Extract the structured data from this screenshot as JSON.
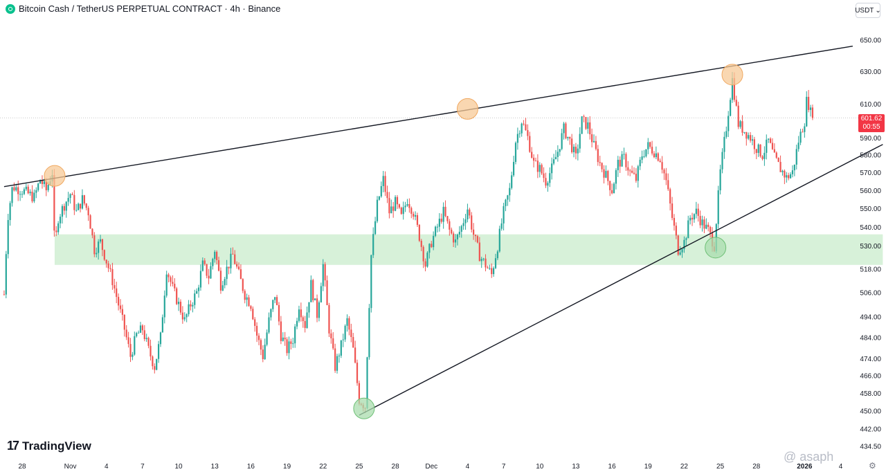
{
  "header": {
    "title": "Bitcoin Cash / TetherUS PERPETUAL CONTRACT · 4h · Binance",
    "coin_icon": "bitcoin-cash-icon"
  },
  "currency_select": {
    "value": "USDT",
    "icon": "chevron-down-icon"
  },
  "price_tag": {
    "price": "601.62",
    "countdown": "00:55",
    "color": "#f23645"
  },
  "brand": {
    "logo_text": "TradingView",
    "mark": "17"
  },
  "watermark": {
    "text": "@ asaph"
  },
  "colors": {
    "up": "#26a69a",
    "down": "#ef5350",
    "zone": "#d3efd5",
    "resistance_marker": "#f7c997",
    "support_marker": "#a9dcae"
  },
  "chart_data": {
    "type": "candlestick",
    "title": "Bitcoin Cash / TetherUS PERPETUAL CONTRACT · 4h · Binance",
    "y_axis": {
      "scale": "log",
      "range": [
        432,
        662
      ],
      "ticks": [
        "650.00",
        "630.00",
        "610.00",
        "590.00",
        "580.00",
        "570.00",
        "560.00",
        "550.00",
        "540.00",
        "530.00",
        "518.00",
        "506.00",
        "494.00",
        "484.00",
        "474.00",
        "466.00",
        "458.00",
        "450.00",
        "442.00",
        "434.50"
      ]
    },
    "x_axis": {
      "ticks": [
        {
          "label": "28",
          "day": 0
        },
        {
          "label": "Nov",
          "day": 4
        },
        {
          "label": "4",
          "day": 7
        },
        {
          "label": "7",
          "day": 10
        },
        {
          "label": "10",
          "day": 13
        },
        {
          "label": "13",
          "day": 16
        },
        {
          "label": "16",
          "day": 19
        },
        {
          "label": "19",
          "day": 22
        },
        {
          "label": "22",
          "day": 25
        },
        {
          "label": "25",
          "day": 28
        },
        {
          "label": "28",
          "day": 31
        },
        {
          "label": "Dec",
          "day": 34
        },
        {
          "label": "4",
          "day": 37
        },
        {
          "label": "7",
          "day": 40
        },
        {
          "label": "10",
          "day": 43
        },
        {
          "label": "13",
          "day": 46
        },
        {
          "label": "16",
          "day": 49
        },
        {
          "label": "19",
          "day": 52
        },
        {
          "label": "22",
          "day": 55
        },
        {
          "label": "25",
          "day": 58
        },
        {
          "label": "28",
          "day": 61
        },
        {
          "label": "2026",
          "day": 65
        },
        {
          "label": "4",
          "day": 68
        }
      ]
    },
    "last_price": 601.62,
    "price_path": [
      [
        -1.5,
        505
      ],
      [
        -1.2,
        545
      ],
      [
        -0.8,
        562
      ],
      [
        0,
        560
      ],
      [
        1,
        556
      ],
      [
        1.5,
        566
      ],
      [
        2,
        560
      ],
      [
        2.5,
        570
      ],
      [
        2.7,
        528
      ],
      [
        3,
        545
      ],
      [
        3.5,
        552
      ],
      [
        4,
        558
      ],
      [
        4.5,
        548
      ],
      [
        5,
        555
      ],
      [
        5.5,
        548
      ],
      [
        6,
        528
      ],
      [
        6.5,
        532
      ],
      [
        7,
        522
      ],
      [
        7.5,
        512
      ],
      [
        8,
        500
      ],
      [
        8.5,
        488
      ],
      [
        9,
        475
      ],
      [
        9.5,
        485
      ],
      [
        10,
        488
      ],
      [
        10.5,
        478
      ],
      [
        11,
        470
      ],
      [
        11.5,
        484
      ],
      [
        12,
        518
      ],
      [
        12.5,
        508
      ],
      [
        13,
        500
      ],
      [
        13.5,
        492
      ],
      [
        14,
        500
      ],
      [
        14.5,
        506
      ],
      [
        15,
        520
      ],
      [
        15.5,
        514
      ],
      [
        16,
        528
      ],
      [
        16.5,
        510
      ],
      [
        17,
        518
      ],
      [
        17.5,
        525
      ],
      [
        18,
        515
      ],
      [
        18.5,
        505
      ],
      [
        19,
        500
      ],
      [
        19.5,
        485
      ],
      [
        20,
        475
      ],
      [
        20.5,
        492
      ],
      [
        21,
        505
      ],
      [
        21.5,
        485
      ],
      [
        22,
        478
      ],
      [
        22.5,
        483
      ],
      [
        23,
        500
      ],
      [
        23.5,
        490
      ],
      [
        24,
        510
      ],
      [
        24.5,
        495
      ],
      [
        25,
        520
      ],
      [
        25.5,
        488
      ],
      [
        26,
        470
      ],
      [
        26.5,
        480
      ],
      [
        27,
        492
      ],
      [
        27.5,
        478
      ],
      [
        28,
        455
      ],
      [
        28.5,
        452
      ],
      [
        29,
        525
      ],
      [
        29.5,
        552
      ],
      [
        30,
        566
      ],
      [
        30.5,
        548
      ],
      [
        31,
        553
      ],
      [
        31.5,
        545
      ],
      [
        32,
        555
      ],
      [
        32.5,
        548
      ],
      [
        33,
        535
      ],
      [
        33.5,
        520
      ],
      [
        34,
        532
      ],
      [
        34.5,
        540
      ],
      [
        35,
        548
      ],
      [
        35.5,
        538
      ],
      [
        36,
        532
      ],
      [
        36.5,
        540
      ],
      [
        37,
        550
      ],
      [
        37.5,
        536
      ],
      [
        38,
        525
      ],
      [
        38.5,
        520
      ],
      [
        39,
        515
      ],
      [
        39.5,
        530
      ],
      [
        40,
        548
      ],
      [
        40.5,
        560
      ],
      [
        41,
        588
      ],
      [
        41.5,
        600
      ],
      [
        42,
        590
      ],
      [
        42.5,
        575
      ],
      [
        43,
        572
      ],
      [
        43.5,
        565
      ],
      [
        44,
        572
      ],
      [
        44.5,
        582
      ],
      [
        45,
        595
      ],
      [
        45.5,
        588
      ],
      [
        46,
        578
      ],
      [
        46.5,
        600
      ],
      [
        47,
        597
      ],
      [
        47.5,
        585
      ],
      [
        48,
        575
      ],
      [
        48.5,
        568
      ],
      [
        49,
        560
      ],
      [
        49.5,
        575
      ],
      [
        50,
        578
      ],
      [
        50.5,
        570
      ],
      [
        51,
        566
      ],
      [
        51.5,
        580
      ],
      [
        52,
        585
      ],
      [
        52.5,
        582
      ],
      [
        53,
        578
      ],
      [
        53.5,
        565
      ],
      [
        54,
        545
      ],
      [
        54.5,
        528
      ],
      [
        55,
        532
      ],
      [
        55.5,
        545
      ],
      [
        56,
        548
      ],
      [
        56.5,
        542
      ],
      [
        57,
        538
      ],
      [
        57.5,
        530
      ],
      [
        58,
        570
      ],
      [
        58.5,
        596
      ],
      [
        59,
        625
      ],
      [
        59.5,
        598
      ],
      [
        60,
        594
      ],
      [
        60.5,
        590
      ],
      [
        61,
        584
      ],
      [
        61.5,
        580
      ],
      [
        62,
        588
      ],
      [
        62.5,
        578
      ],
      [
        63,
        572
      ],
      [
        63.5,
        567
      ],
      [
        64,
        570
      ],
      [
        64.5,
        588
      ],
      [
        65,
        600
      ],
      [
        65.2,
        614
      ],
      [
        65.6,
        601.62
      ]
    ],
    "annotations": {
      "resistance_line": {
        "from": [
          -1.5,
          562
        ],
        "to": [
          69,
          646
        ]
      },
      "support_line": {
        "from": [
          28,
          448
        ],
        "to": [
          71.5,
          586
        ]
      },
      "demand_zone": {
        "from_day": 2.7,
        "to_day": 71.5,
        "low": 520,
        "high": 536
      },
      "resistance_touches": [
        [
          2.7,
          568
        ],
        [
          37,
          607
        ],
        [
          59,
          628
        ]
      ],
      "support_touches": [
        [
          28.4,
          451
        ],
        [
          57.6,
          529
        ]
      ]
    }
  }
}
